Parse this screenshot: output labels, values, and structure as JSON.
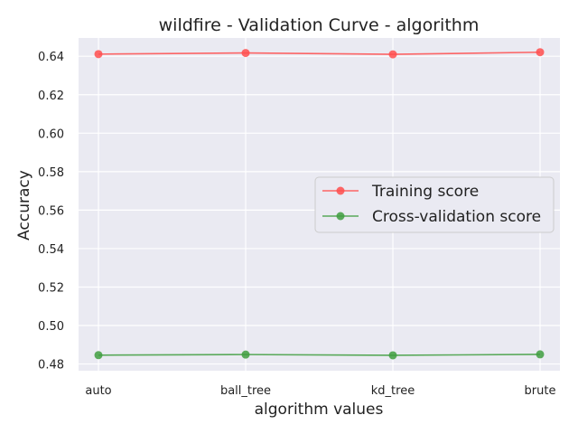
{
  "chart_data": {
    "type": "line",
    "title": "wildfire - Validation Curve - algorithm",
    "xlabel": "algorithm values",
    "ylabel": "Accuracy",
    "categories": [
      "auto",
      "ball_tree",
      "kd_tree",
      "brute"
    ],
    "yticks": [
      "0.48",
      "0.50",
      "0.52",
      "0.54",
      "0.56",
      "0.58",
      "0.60",
      "0.62",
      "0.64"
    ],
    "ylim": [
      0.4765,
      0.6495
    ],
    "grid": true,
    "legend_position": "center-right",
    "series": [
      {
        "name": "Training score",
        "color": "#ff4d4d",
        "values": [
          0.6411,
          0.6417,
          0.641,
          0.6421
        ]
      },
      {
        "name": "Cross-validation score",
        "color": "#3f9e3f",
        "values": [
          0.4846,
          0.4849,
          0.4845,
          0.485
        ]
      }
    ],
    "background": "#eaeaf2"
  }
}
